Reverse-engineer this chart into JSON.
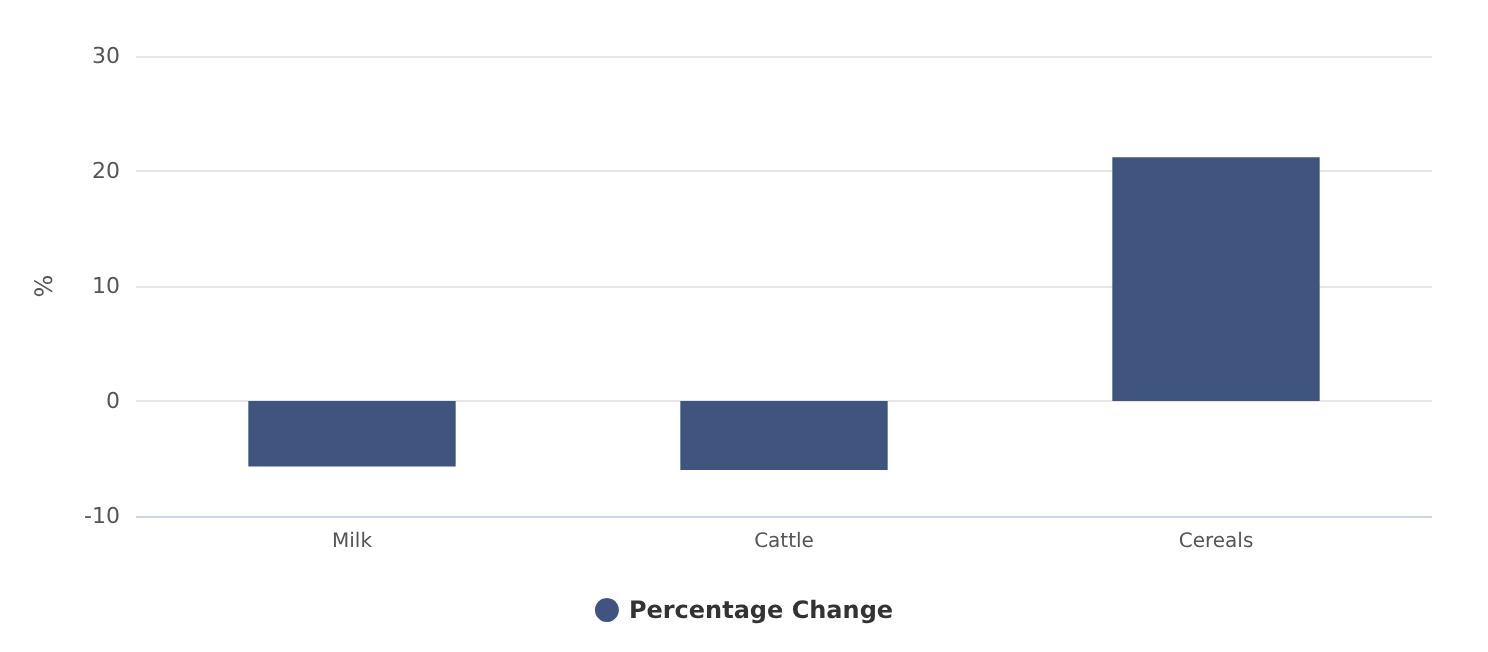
{
  "chart_data": {
    "type": "bar",
    "ylabel": "%",
    "categories": [
      "Milk",
      "Cattle",
      "Cereals"
    ],
    "series": [
      {
        "name": "Percentage Change",
        "color": "#3f547f",
        "values": [
          -5.7,
          -6.0,
          21.2
        ]
      }
    ],
    "ylim": [
      -10,
      30
    ],
    "yticks": [
      -10,
      0,
      10,
      20,
      30
    ],
    "grid": "y",
    "legend": "bottom"
  }
}
